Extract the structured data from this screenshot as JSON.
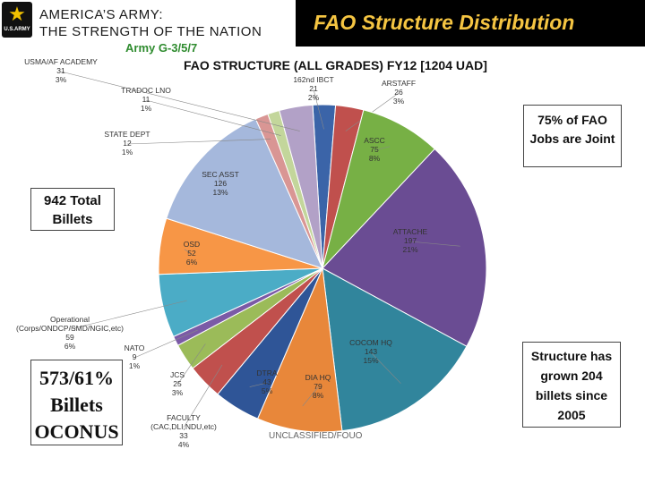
{
  "header": {
    "brand_line1": "AMERICA’S ARMY:",
    "brand_line2": "THE STRENGTH OF THE NATION",
    "logo_text": "U.S.ARMY",
    "slide_title": "FAO Structure Distribution",
    "sub_label": "Army G-3/5/7"
  },
  "colors": {
    "title_gold": "#f5c542",
    "subtitle_green": "#2e8b2e"
  },
  "callouts": {
    "total": [
      "942 Total",
      "Billets"
    ],
    "oconus": [
      "573/61%",
      "Billets",
      "OCONUS"
    ],
    "joint": [
      "75% of FAO",
      "Jobs are Joint"
    ],
    "growth": [
      "Structure has",
      "grown 204",
      "billets since",
      "2005"
    ]
  },
  "footer": "UNCLASSIFIED/FOUO",
  "chart_data": {
    "type": "pie",
    "title": "FAO STRUCTURE (ALL GRADES) FY12 [1204 UAD]",
    "slices": [
      {
        "name": "162nd IBCT",
        "value": 21,
        "pct": "2%",
        "color": "#3b64a8"
      },
      {
        "name": "ARSTAFF",
        "value": 26,
        "pct": "3%",
        "color": "#c0504d"
      },
      {
        "name": "ASCC",
        "value": 75,
        "pct": "8%",
        "color": "#77b045"
      },
      {
        "name": "ATTACHE",
        "value": 197,
        "pct": "21%",
        "color": "#6a4c93"
      },
      {
        "name": "COCOM HQ",
        "value": 143,
        "pct": "15%",
        "color": "#31859c"
      },
      {
        "name": "DIA HQ",
        "value": 79,
        "pct": "8%",
        "color": "#e8873a"
      },
      {
        "name": "DTRA",
        "value": 43,
        "pct": "5%",
        "color": "#2f5597"
      },
      {
        "name": "FACULTY (CAC,DLI,NDU,etc)",
        "value": 33,
        "pct": "4%",
        "color": "#c0504d"
      },
      {
        "name": "JCS",
        "value": 25,
        "pct": "3%",
        "color": "#9bbb59"
      },
      {
        "name": "NATO",
        "value": 9,
        "pct": "1%",
        "color": "#7b5aa6"
      },
      {
        "name": "Operational (Corps/ONDCP/SMD/NGIC,etc)",
        "value": 59,
        "pct": "6%",
        "color": "#4bacc6"
      },
      {
        "name": "OSD",
        "value": 52,
        "pct": "6%",
        "color": "#f79646"
      },
      {
        "name": "SEC ASST",
        "value": 126,
        "pct": "13%",
        "color": "#a5b8dc"
      },
      {
        "name": "STATE DEPT",
        "value": 12,
        "pct": "1%",
        "color": "#d99694"
      },
      {
        "name": "TRADOC LNO",
        "value": 11,
        "pct": "1%",
        "color": "#c3d69b"
      },
      {
        "name": "USMA/AF ACADEMY",
        "value": 31,
        "pct": "3%",
        "color": "#b2a1c7"
      }
    ]
  }
}
